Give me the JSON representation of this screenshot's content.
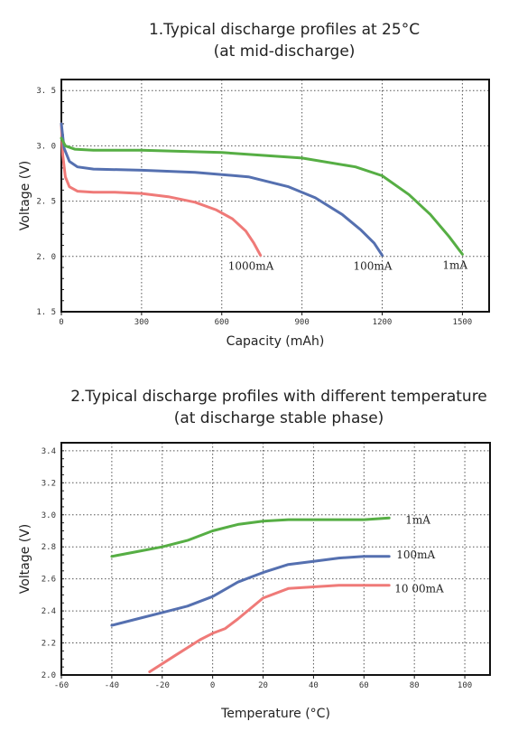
{
  "chart_data": [
    {
      "type": "line",
      "title": "1.Typical discharge profiles at 25°C",
      "subtitle": "(at mid-discharge)",
      "xlabel": "Capacity (mAh)",
      "ylabel": "Voltage (V)",
      "xlim": [
        0,
        1600
      ],
      "ylim": [
        1.5,
        3.6
      ],
      "xticks": [
        0,
        300,
        600,
        900,
        1200,
        1500
      ],
      "yticks": [
        1.5,
        2.0,
        2.5,
        3.0,
        3.5
      ],
      "ytick_labels": [
        "1. 5",
        "2. 0",
        "2. 5",
        "3. 0",
        "3. 5"
      ],
      "grid": true,
      "series": [
        {
          "name": "1000mA",
          "color": "#ef7a78",
          "x": [
            0,
            5,
            15,
            30,
            60,
            120,
            200,
            300,
            400,
            500,
            580,
            640,
            690,
            720,
            745
          ],
          "y": [
            3.2,
            2.92,
            2.72,
            2.63,
            2.59,
            2.58,
            2.58,
            2.57,
            2.54,
            2.49,
            2.42,
            2.34,
            2.23,
            2.12,
            2.01
          ]
        },
        {
          "name": "100mA",
          "color": "#5570b0",
          "x": [
            0,
            10,
            30,
            60,
            120,
            300,
            500,
            700,
            850,
            950,
            1050,
            1120,
            1170,
            1200
          ],
          "y": [
            3.2,
            2.98,
            2.86,
            2.81,
            2.79,
            2.78,
            2.76,
            2.72,
            2.63,
            2.53,
            2.38,
            2.24,
            2.12,
            2.01
          ]
        },
        {
          "name": "1mA",
          "color": "#56ae44",
          "x": [
            0,
            15,
            50,
            120,
            300,
            600,
            900,
            1100,
            1200,
            1300,
            1380,
            1450,
            1500
          ],
          "y": [
            3.07,
            3.0,
            2.97,
            2.96,
            2.96,
            2.94,
            2.89,
            2.81,
            2.73,
            2.56,
            2.38,
            2.18,
            2.02
          ]
        }
      ]
    },
    {
      "type": "line",
      "title": "2.Typical discharge profiles with different temperature",
      "subtitle": "(at discharge stable phase)",
      "xlabel": "Temperature (°C)",
      "ylabel": "Voltage (V)",
      "xlim": [
        -60,
        110
      ],
      "ylim": [
        2.0,
        3.45
      ],
      "xticks": [
        -60,
        -40,
        -20,
        0,
        20,
        40,
        60,
        80,
        100
      ],
      "yticks": [
        2.0,
        2.2,
        2.4,
        2.6,
        2.8,
        3.0,
        3.2,
        3.4
      ],
      "ytick_labels": [
        "2.0",
        "2.2",
        "2.4",
        "2.6",
        "2.8",
        "3.0",
        "3.2",
        "3.4"
      ],
      "grid": true,
      "series": [
        {
          "name": "1mA",
          "color": "#56ae44",
          "x": [
            -40,
            -30,
            -20,
            -10,
            0,
            10,
            20,
            30,
            40,
            50,
            60,
            70
          ],
          "y": [
            2.74,
            2.77,
            2.8,
            2.84,
            2.9,
            2.94,
            2.96,
            2.97,
            2.97,
            2.97,
            2.97,
            2.98
          ]
        },
        {
          "name": "100mA",
          "color": "#5570b0",
          "x": [
            -40,
            -30,
            -20,
            -10,
            0,
            10,
            20,
            30,
            40,
            50,
            60,
            70
          ],
          "y": [
            2.31,
            2.35,
            2.39,
            2.43,
            2.49,
            2.58,
            2.64,
            2.69,
            2.71,
            2.73,
            2.74,
            2.74
          ]
        },
        {
          "name": "10 00mA",
          "color": "#ef7a78",
          "x": [
            -25,
            -15,
            -5,
            0,
            5,
            10,
            20,
            30,
            40,
            50,
            60,
            70
          ],
          "y": [
            2.02,
            2.12,
            2.22,
            2.26,
            2.29,
            2.35,
            2.48,
            2.54,
            2.55,
            2.56,
            2.56,
            2.56
          ]
        }
      ]
    }
  ]
}
